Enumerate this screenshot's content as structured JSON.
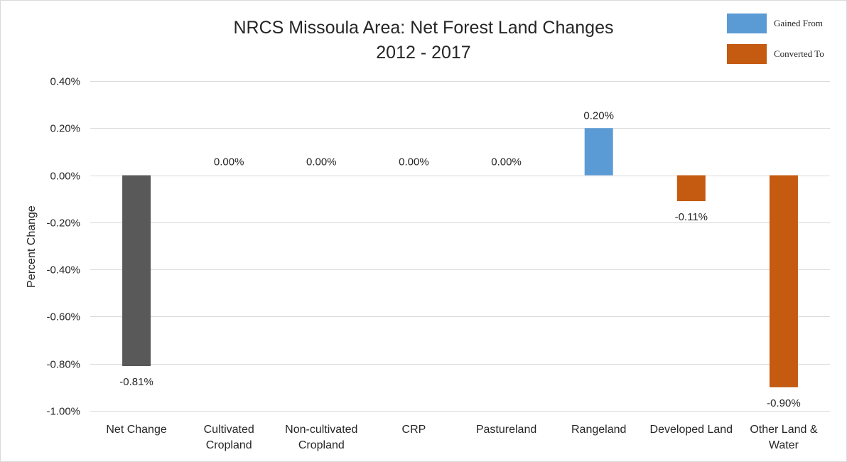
{
  "chart_data": {
    "type": "bar",
    "title": [
      "NRCS Missoula Area: Net Forest Land Changes",
      "2012 - 2017"
    ],
    "xlabel": "",
    "ylabel": "Percent Change",
    "ylim": [
      -1.0,
      0.4
    ],
    "yticks": [
      0.4,
      0.2,
      0.0,
      -0.2,
      -0.4,
      -0.6,
      -0.8,
      -1.0
    ],
    "ytick_labels": [
      "0.40%",
      "0.20%",
      "0.00%",
      "-0.20%",
      "-0.40%",
      "-0.60%",
      "-0.80%",
      "-1.00%"
    ],
    "grid": true,
    "legend_position": "top-right",
    "categories": [
      [
        "Net Change"
      ],
      [
        "Cultivated",
        "Cropland"
      ],
      [
        "Non-cultivated",
        "Cropland"
      ],
      [
        "CRP"
      ],
      [
        "Pastureland"
      ],
      [
        "Rangeland"
      ],
      [
        "Developed Land"
      ],
      [
        "Other Land &",
        "Water"
      ]
    ],
    "values": [
      -0.81,
      0.0,
      0.0,
      0.0,
      0.0,
      0.2,
      -0.11,
      -0.9
    ],
    "value_labels": [
      "-0.81%",
      "0.00%",
      "0.00%",
      "0.00%",
      "0.00%",
      "0.20%",
      "-0.11%",
      "-0.90%"
    ],
    "bar_groups": [
      "net",
      "none",
      "none",
      "none",
      "none",
      "gained",
      "converted",
      "converted"
    ],
    "legend": [
      {
        "name": "Gained From",
        "color": "#5b9bd5"
      },
      {
        "name": "Converted To",
        "color": "#c55a11"
      }
    ],
    "colors": {
      "net": "#595959",
      "gained": "#5b9bd5",
      "converted": "#c55a11",
      "none": "#ffffff"
    }
  }
}
